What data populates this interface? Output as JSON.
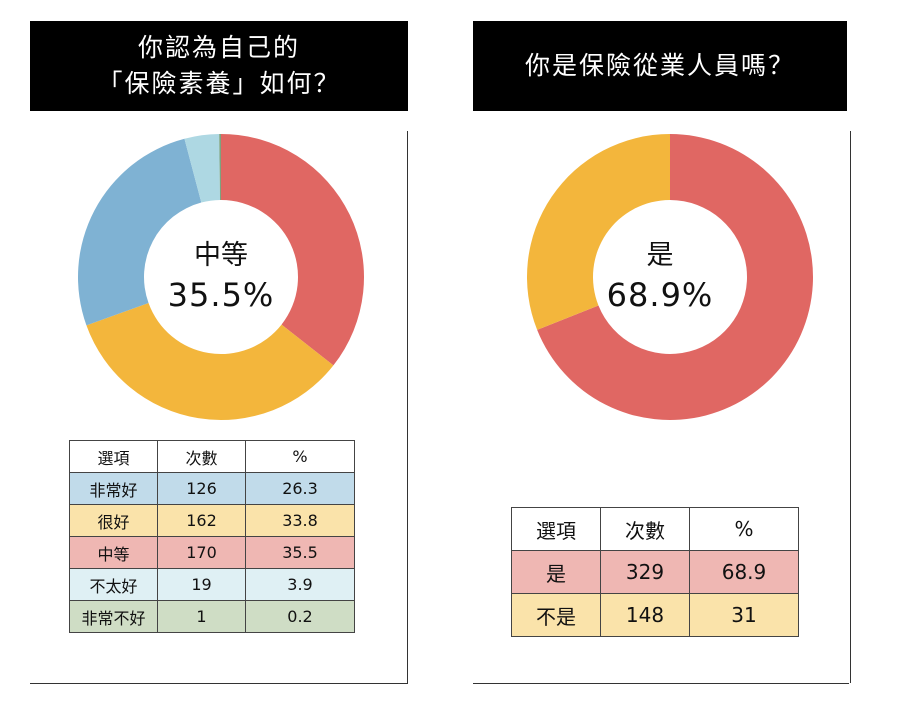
{
  "chart_data": [
    {
      "type": "pie",
      "title_lines": [
        "你認為自己的",
        "「保險素養」如何？"
      ],
      "center_label": "中等",
      "center_value": "35.5%",
      "categories": [
        "非常好",
        "很好",
        "中等",
        "不太好",
        "非常不好"
      ],
      "values": [
        26.3,
        33.8,
        35.5,
        3.9,
        0.2
      ],
      "colors": [
        "#7fb2d3",
        "#f3b63c",
        "#e06763",
        "#aed8e3",
        "#7da27e"
      ],
      "table": {
        "headers": [
          "選項",
          "次數",
          "%"
        ],
        "rows": [
          {
            "option": "非常好",
            "count": "126",
            "percent": "26.3",
            "bg": "#c1dbea"
          },
          {
            "option": "很好",
            "count": "162",
            "percent": "33.8",
            "bg": "#fae3aa"
          },
          {
            "option": "中等",
            "count": "170",
            "percent": "35.5",
            "bg": "#efb7b3"
          },
          {
            "option": "不太好",
            "count": "19",
            "percent": "3.9",
            "bg": "#dff0f4"
          },
          {
            "option": "非常不好",
            "count": "1",
            "percent": "0.2",
            "bg": "#cfddc5"
          }
        ]
      }
    },
    {
      "type": "pie",
      "title_lines": [
        "你是保險從業人員嗎？"
      ],
      "center_label": "是",
      "center_value": "68.9%",
      "categories": [
        "是",
        "不是"
      ],
      "values": [
        68.9,
        31
      ],
      "colors": [
        "#e06763",
        "#f3b63c"
      ],
      "table": {
        "headers": [
          "選項",
          "次數",
          "%"
        ],
        "rows": [
          {
            "option": "是",
            "count": "329",
            "percent": "68.9",
            "bg": "#efb7b3"
          },
          {
            "option": "不是",
            "count": "148",
            "percent": "31",
            "bg": "#fae3aa"
          }
        ]
      }
    }
  ]
}
